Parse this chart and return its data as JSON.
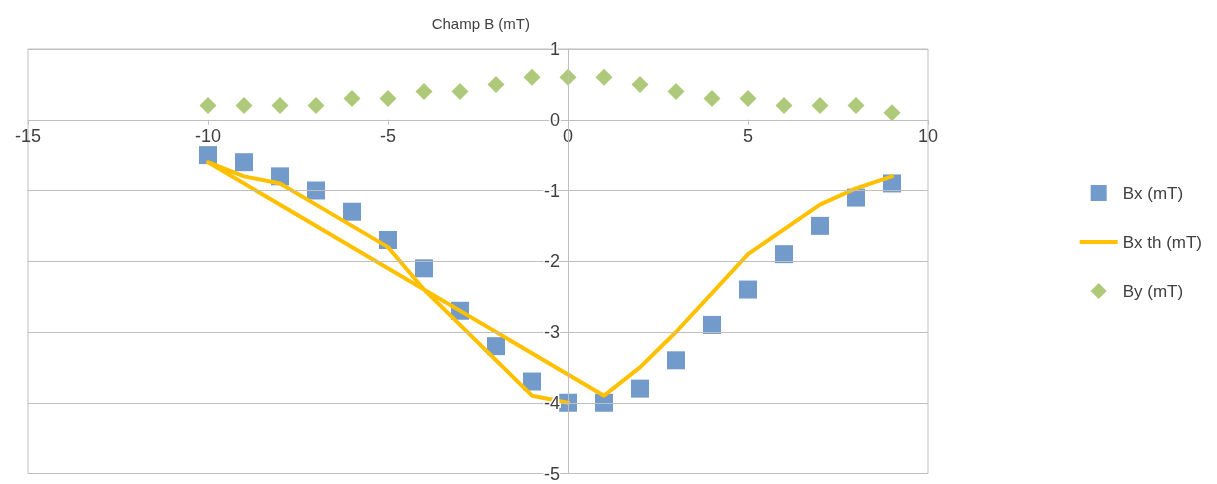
{
  "chart_data": {
    "type": "scatter",
    "ylabel": "Champ B (mT)",
    "xlim": [
      -15,
      10
    ],
    "xticks": [
      -15,
      -10,
      -5,
      0,
      5,
      10
    ],
    "ylim": [
      -5,
      1
    ],
    "yticks": [
      -5,
      -4,
      -3,
      -2,
      -1,
      0,
      1
    ],
    "grid": "y",
    "legend": "right",
    "x": [
      -10,
      -9,
      -8,
      -7,
      -6,
      -5,
      -4,
      -3,
      -2,
      -1,
      0,
      1,
      2,
      3,
      4,
      5,
      6,
      7,
      8,
      9
    ],
    "series": [
      {
        "name": "Bx (mT)",
        "marker": "square",
        "color": "#4f81bd",
        "values": [
          -0.5,
          -0.6,
          -0.8,
          -1.0,
          -1.3,
          -1.7,
          -2.1,
          -2.7,
          -3.2,
          -3.7,
          -4.0,
          -4.0,
          -3.8,
          -3.4,
          -2.9,
          -2.4,
          -1.9,
          -1.5,
          -1.1,
          -0.9
        ]
      },
      {
        "name": "Bx th (mT)",
        "type": "line",
        "marker": "none",
        "color": "#ffc000",
        "x": [
          0,
          -1,
          -2,
          -3,
          -4,
          -5,
          -6,
          -7,
          -8,
          -9,
          -10,
          1,
          2,
          3,
          4,
          5,
          6,
          7,
          8,
          9
        ],
        "values": [
          -4.0,
          -3.9,
          -3.4,
          -2.9,
          -2.4,
          -1.8,
          -1.5,
          -1.2,
          -0.9,
          -0.8,
          -0.6,
          -3.9,
          -3.5,
          -3.0,
          -2.45,
          -1.9,
          -1.55,
          -1.2,
          -0.97,
          -0.8
        ]
      },
      {
        "name": "By (mT)",
        "marker": "diamond",
        "color": "#9bbb59",
        "values": [
          0.2,
          0.2,
          0.2,
          0.2,
          0.3,
          0.3,
          0.4,
          0.4,
          0.5,
          0.6,
          0.6,
          0.6,
          0.5,
          0.4,
          0.3,
          0.3,
          0.2,
          0.2,
          0.2,
          0.1
        ]
      }
    ]
  }
}
